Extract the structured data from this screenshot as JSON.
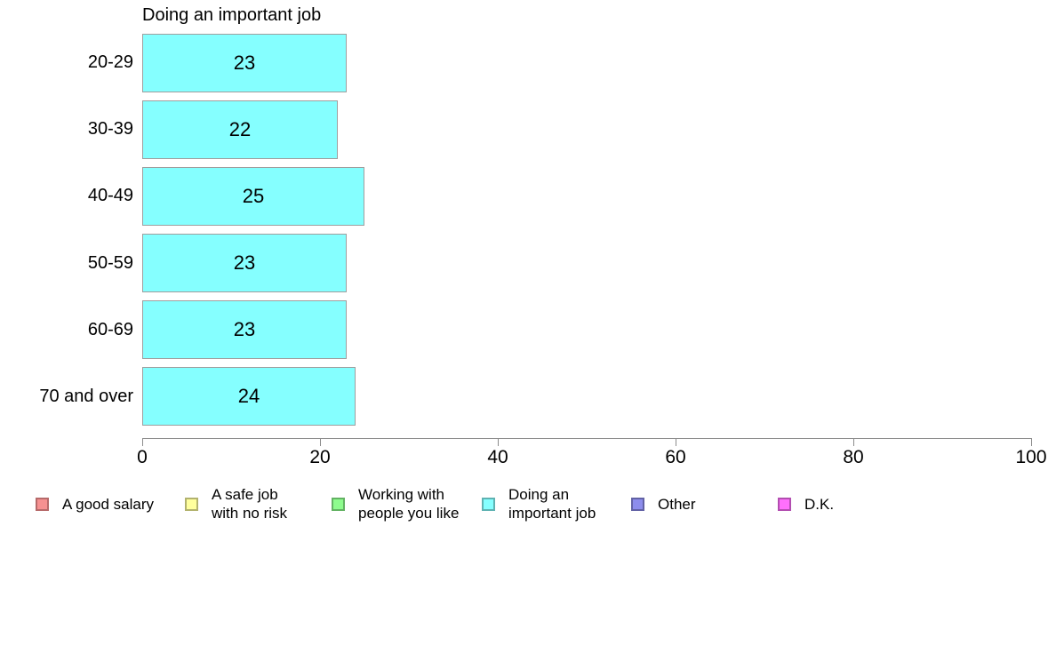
{
  "chart_data": {
    "type": "bar",
    "orientation": "horizontal",
    "title": "Doing an important job",
    "categories": [
      "20-29",
      "30-39",
      "40-49",
      "50-59",
      "60-69",
      "70 and over"
    ],
    "values": [
      23,
      22,
      25,
      23,
      23,
      24
    ],
    "series": [
      {
        "name": "Doing an important job",
        "values": [
          23,
          22,
          25,
          23,
          23,
          24
        ]
      }
    ],
    "xlabel": "",
    "ylabel": "",
    "xlim": [
      0,
      100
    ],
    "x_ticks": [
      0,
      20,
      40,
      60,
      80,
      100
    ],
    "grid": "off",
    "legend_position": "bottom",
    "bar_color": "#85ffff",
    "bar_border_color": "#9e9e9e",
    "axis_color": "#8c8c8c",
    "legend": [
      {
        "label": "A good salary",
        "color": "#f69191",
        "border": "#b66a6a"
      },
      {
        "label": "A safe job\nwith no risk",
        "color": "#ffff9d",
        "border": "#b2b26e"
      },
      {
        "label": "Working with\npeople you like",
        "color": "#8efc8e",
        "border": "#63b263"
      },
      {
        "label": "Doing an\nimportant job",
        "color": "#85ffff",
        "border": "#5fb2b2"
      },
      {
        "label": "Other",
        "color": "#8d8dec",
        "border": "#6262a5"
      },
      {
        "label": "D.K.",
        "color": "#ff70fc",
        "border": "#b24eb0"
      }
    ]
  }
}
